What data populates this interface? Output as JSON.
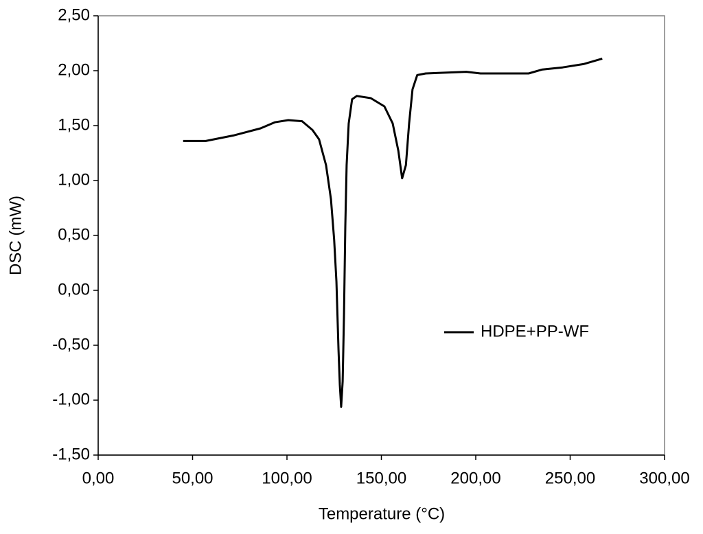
{
  "chart_data": {
    "type": "line",
    "x_label": "Temperature (°C)",
    "y_label": "DSC (mW)",
    "xlim": [
      0,
      300
    ],
    "ylim": [
      -1.5,
      2.5
    ],
    "xticks": [
      {
        "value": 0,
        "label": "0,00"
      },
      {
        "value": 50,
        "label": "50,00"
      },
      {
        "value": 100,
        "label": "100,00"
      },
      {
        "value": 150,
        "label": "150,00"
      },
      {
        "value": 200,
        "label": "200,00"
      },
      {
        "value": 250,
        "label": "250,00"
      },
      {
        "value": 300,
        "label": "300,00"
      }
    ],
    "yticks": [
      {
        "value": -1.5,
        "label": "-1,50"
      },
      {
        "value": -1,
        "label": "-1,00"
      },
      {
        "value": -0.5,
        "label": "-0,50"
      },
      {
        "value": 0,
        "label": "0,00"
      },
      {
        "value": 0.5,
        "label": "0,50"
      },
      {
        "value": 1,
        "label": "1,00"
      },
      {
        "value": 1.5,
        "label": "1,50"
      },
      {
        "value": 2,
        "label": "2,00"
      },
      {
        "value": 2.5,
        "label": "2,50"
      }
    ],
    "grid": false,
    "legend": "center-right",
    "x": [
      45,
      57,
      71.6,
      86,
      93.5,
      100.7,
      108,
      113.5,
      117,
      120.7,
      123.3,
      125,
      126.2,
      127.3,
      128,
      128.7,
      129.5,
      130.2,
      130.9,
      131.6,
      132.7,
      134.5,
      137,
      144.4,
      151.6,
      156,
      159,
      161,
      163,
      164.7,
      166.5,
      169,
      173.5,
      195,
      202.5,
      228,
      235,
      246,
      257,
      267
    ],
    "series": [
      {
        "name": "HDPE+PP-WF",
        "color": "#000000",
        "values": [
          1.36,
          1.36,
          1.41,
          1.475,
          1.53,
          1.55,
          1.54,
          1.46,
          1.375,
          1.14,
          0.83,
          0.46,
          0.08,
          -0.54,
          -0.86,
          -1.06,
          -0.83,
          -0.23,
          0.58,
          1.14,
          1.52,
          1.74,
          1.77,
          1.75,
          1.675,
          1.52,
          1.27,
          1.02,
          1.14,
          1.52,
          1.83,
          1.96,
          1.975,
          1.99,
          1.975,
          1.975,
          2.01,
          2.03,
          2.06,
          2.11
        ]
      }
    ]
  }
}
